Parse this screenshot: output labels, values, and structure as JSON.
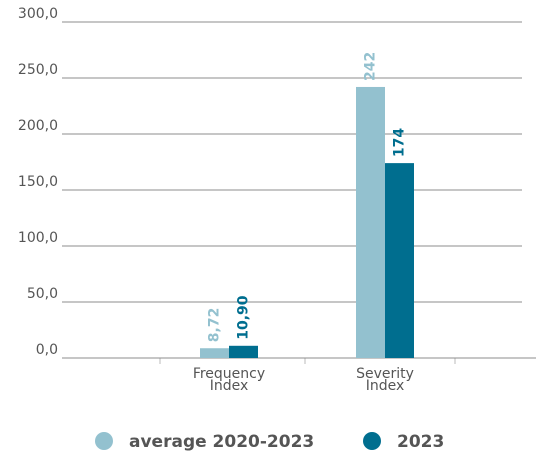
{
  "chart_data": {
    "type": "bar",
    "categories": [
      "Frequency Index",
      "Severity Index"
    ],
    "series": [
      {
        "name": "average 2020-2023",
        "color": "#93c1cf",
        "values": [
          8.72,
          242
        ],
        "value_labels": [
          "8,72",
          "242"
        ]
      },
      {
        "name": "2023",
        "color": "#006e8f",
        "values": [
          10.9,
          174
        ],
        "value_labels": [
          "10,90",
          "174"
        ]
      }
    ],
    "ylim": [
      0,
      300
    ],
    "yticks": [
      {
        "value": 0,
        "label": "0,0"
      },
      {
        "value": 50,
        "label": "50,0"
      },
      {
        "value": 100,
        "label": "100,0"
      },
      {
        "value": 150,
        "label": "150,0"
      },
      {
        "value": 200,
        "label": "200,0"
      },
      {
        "value": 250,
        "label": "250,0"
      },
      {
        "value": 300,
        "label": "300,0"
      }
    ],
    "grid": true,
    "legend": "bottom"
  }
}
